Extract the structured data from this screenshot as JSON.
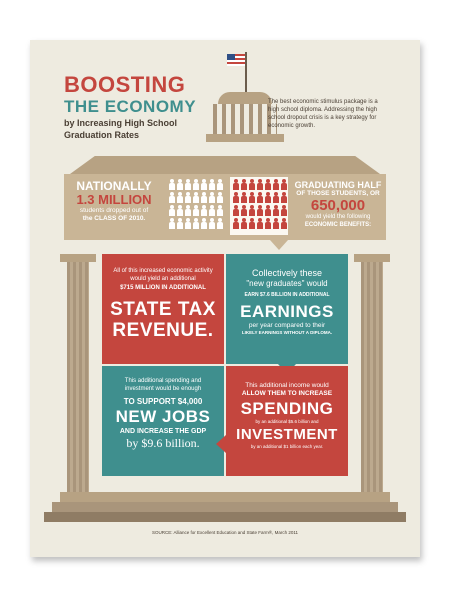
{
  "title": {
    "line1": "BOOSTING",
    "line2": "THE ECONOMY",
    "line3": "by Increasing High School",
    "line4": "Graduation Rates"
  },
  "intro": "The best economic stimulus package is a high school diploma. Addressing the high school dropout crisis is a key strategy for economic growth.",
  "left_stat": {
    "line1": "NATIONALLY",
    "line2": "1.3 MILLION",
    "line3": "students dropped out of",
    "line4": "the CLASS OF 2010."
  },
  "right_stat": {
    "line1": "GRADUATING HALF",
    "line2": "OF THOSE STUDENTS, OR",
    "line3": "650,000",
    "line4": "would yield the following",
    "line5": "ECONOMIC BENEFITS:"
  },
  "panels": {
    "revenue": {
      "small1": "All of this increased economic activity would yield an additional",
      "small2": "$715 MILLION IN ADDITIONAL",
      "big1": "STATE TAX",
      "big2": "REVENUE."
    },
    "earnings": {
      "small1": "Collectively these",
      "small2": "\"new graduates\" would",
      "small3": "EARN $7.6 BILLION IN ADDITIONAL",
      "big": "EARNINGS",
      "small4": "per year compared to their",
      "small5": "LIKELY EARNINGS WITHOUT A DIPLOMA."
    },
    "jobs": {
      "small1": "This additional spending and investment would be enough",
      "small2": "TO SUPPORT $4,000",
      "big": "NEW JOBS",
      "small3": "AND INCREASE THE GDP",
      "small4": "by $9.6 billion."
    },
    "spending": {
      "small1": "This additional income would",
      "small2": "ALLOW THEM TO INCREASE",
      "big1": "SPENDING",
      "small3": "by an additional $5.6 billion and",
      "big2": "INVESTMENT",
      "small4": "by an additional $1 billion each year."
    }
  },
  "source": "SOURCE: Alliance for Excellent Education and State Farm®, March 2011",
  "colors": {
    "red": "#c4463e",
    "teal": "#3f8f8e",
    "tan": "#c9b596",
    "dark": "#6b5c4c",
    "paper": "#eeebe0"
  },
  "icons": [
    "flag-icon",
    "person-icon"
  ]
}
